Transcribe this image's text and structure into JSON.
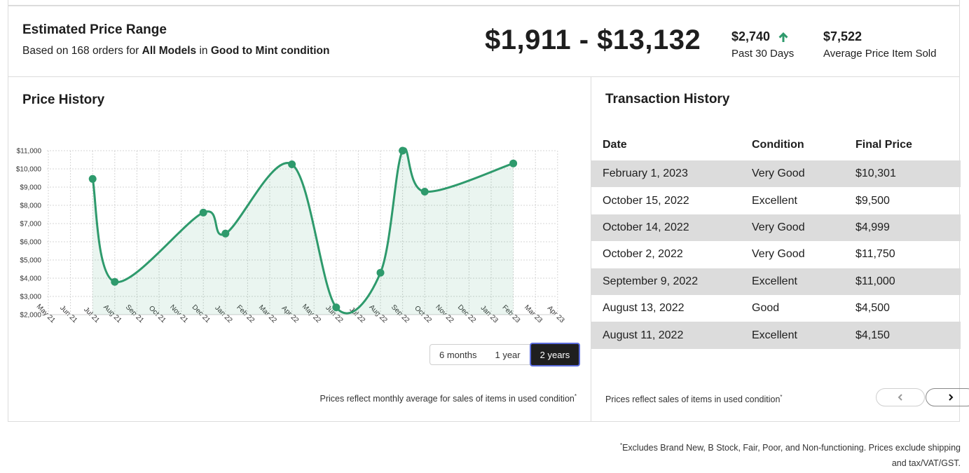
{
  "summary": {
    "title": "Estimated Price Range",
    "sub_prefix": "Based on 168 orders for",
    "sub_models": "All Models",
    "sub_in": "in",
    "sub_condition": "Good to Mint condition",
    "range": "$1,911 - $13,132",
    "recent_value": "$2,740",
    "recent_label": "Past 30 Days",
    "avg_value": "$7,522",
    "avg_label": "Average Price Item Sold",
    "accent": "#2e9a6c"
  },
  "price_history": {
    "title": "Price History",
    "ranges": [
      "6 months",
      "1 year",
      "2 years"
    ],
    "selected_range": "2 years",
    "note": "Prices reflect monthly average for sales of items in used condition",
    "note_mark": "*"
  },
  "chart_data": {
    "type": "area",
    "x": [
      "May 21",
      "Jun 21",
      "Jul 21",
      "Aug 21",
      "Sep 21",
      "Oct 21",
      "Nov 21",
      "Dec 21",
      "Jan 22",
      "Feb 22",
      "Mar 22",
      "Apr 22",
      "May 22",
      "Jun 22",
      "Jul 22",
      "Aug 22",
      "Sep 22",
      "Oct 22",
      "Nov 22",
      "Dec 22",
      "Jan 23",
      "Feb 23",
      "Mar 23",
      "Apr 23"
    ],
    "series": [
      {
        "values": [
          null,
          null,
          9450,
          3800,
          null,
          null,
          null,
          7600,
          6450,
          null,
          null,
          10250,
          null,
          2400,
          null,
          4300,
          11000,
          8750,
          null,
          null,
          null,
          10300,
          null,
          null
        ],
        "color": "#2e9a6c"
      }
    ],
    "yticks": [
      "$2,000",
      "$3,000",
      "$4,000",
      "$5,000",
      "$6,000",
      "$7,000",
      "$8,000",
      "$9,000",
      "$10,000",
      "$11,000"
    ],
    "ylim": [
      2000,
      11000
    ],
    "grid": true
  },
  "transactions": {
    "title": "Transaction History",
    "columns": [
      "Date",
      "Condition",
      "Final Price"
    ],
    "rows": [
      [
        "February 1, 2023",
        "Very Good",
        "$10,301"
      ],
      [
        "October 15, 2022",
        "Excellent",
        "$9,500"
      ],
      [
        "October 14, 2022",
        "Very Good",
        "$4,999"
      ],
      [
        "October 2, 2022",
        "Very Good",
        "$11,750"
      ],
      [
        "September 9, 2022",
        "Excellent",
        "$11,000"
      ],
      [
        "August 13, 2022",
        "Good",
        "$4,500"
      ],
      [
        "August 11, 2022",
        "Excellent",
        "$4,150"
      ]
    ],
    "note": "Prices reflect sales of items in used condition",
    "note_mark": "*",
    "prev_icon": "chevron-left-icon",
    "next_icon": "chevron-right-icon"
  },
  "footer": {
    "mark": "*",
    "line1": "Excludes Brand New, B Stock, Fair, Poor, and Non-functioning. Prices exclude shipping",
    "line2": "and tax/VAT/GST."
  }
}
